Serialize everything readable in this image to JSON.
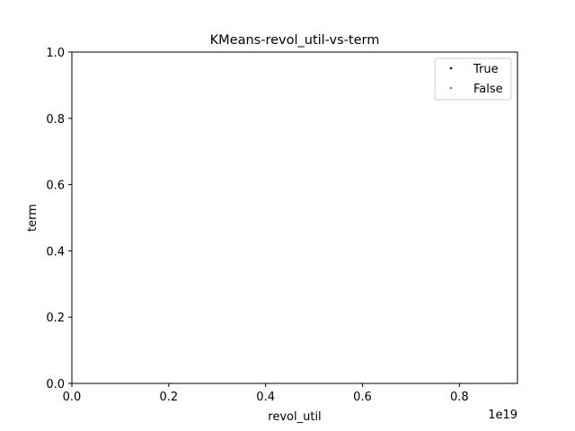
{
  "chart_data": {
    "type": "scatter",
    "title": "KMeans-revol_util-vs-term",
    "xlabel": "revol_util",
    "ylabel": "term",
    "x_offset_label": "1e19",
    "xlim": [
      0,
      0.92
    ],
    "ylim": [
      0,
      1.0
    ],
    "x_ticks": [
      0.0,
      0.2,
      0.4,
      0.6,
      0.8
    ],
    "x_tick_labels": [
      "0.0",
      "0.2",
      "0.4",
      "0.6",
      "0.8"
    ],
    "y_ticks": [
      0.0,
      0.2,
      0.4,
      0.6,
      0.8,
      1.0
    ],
    "y_tick_labels": [
      "0.0",
      "0.2",
      "0.4",
      "0.6",
      "0.8",
      "1.0"
    ],
    "grid": false,
    "legend_position": "top-right",
    "series": [
      {
        "name": "True",
        "color": "#000000",
        "points": []
      },
      {
        "name": "False",
        "color": "#808080",
        "points": []
      }
    ]
  }
}
